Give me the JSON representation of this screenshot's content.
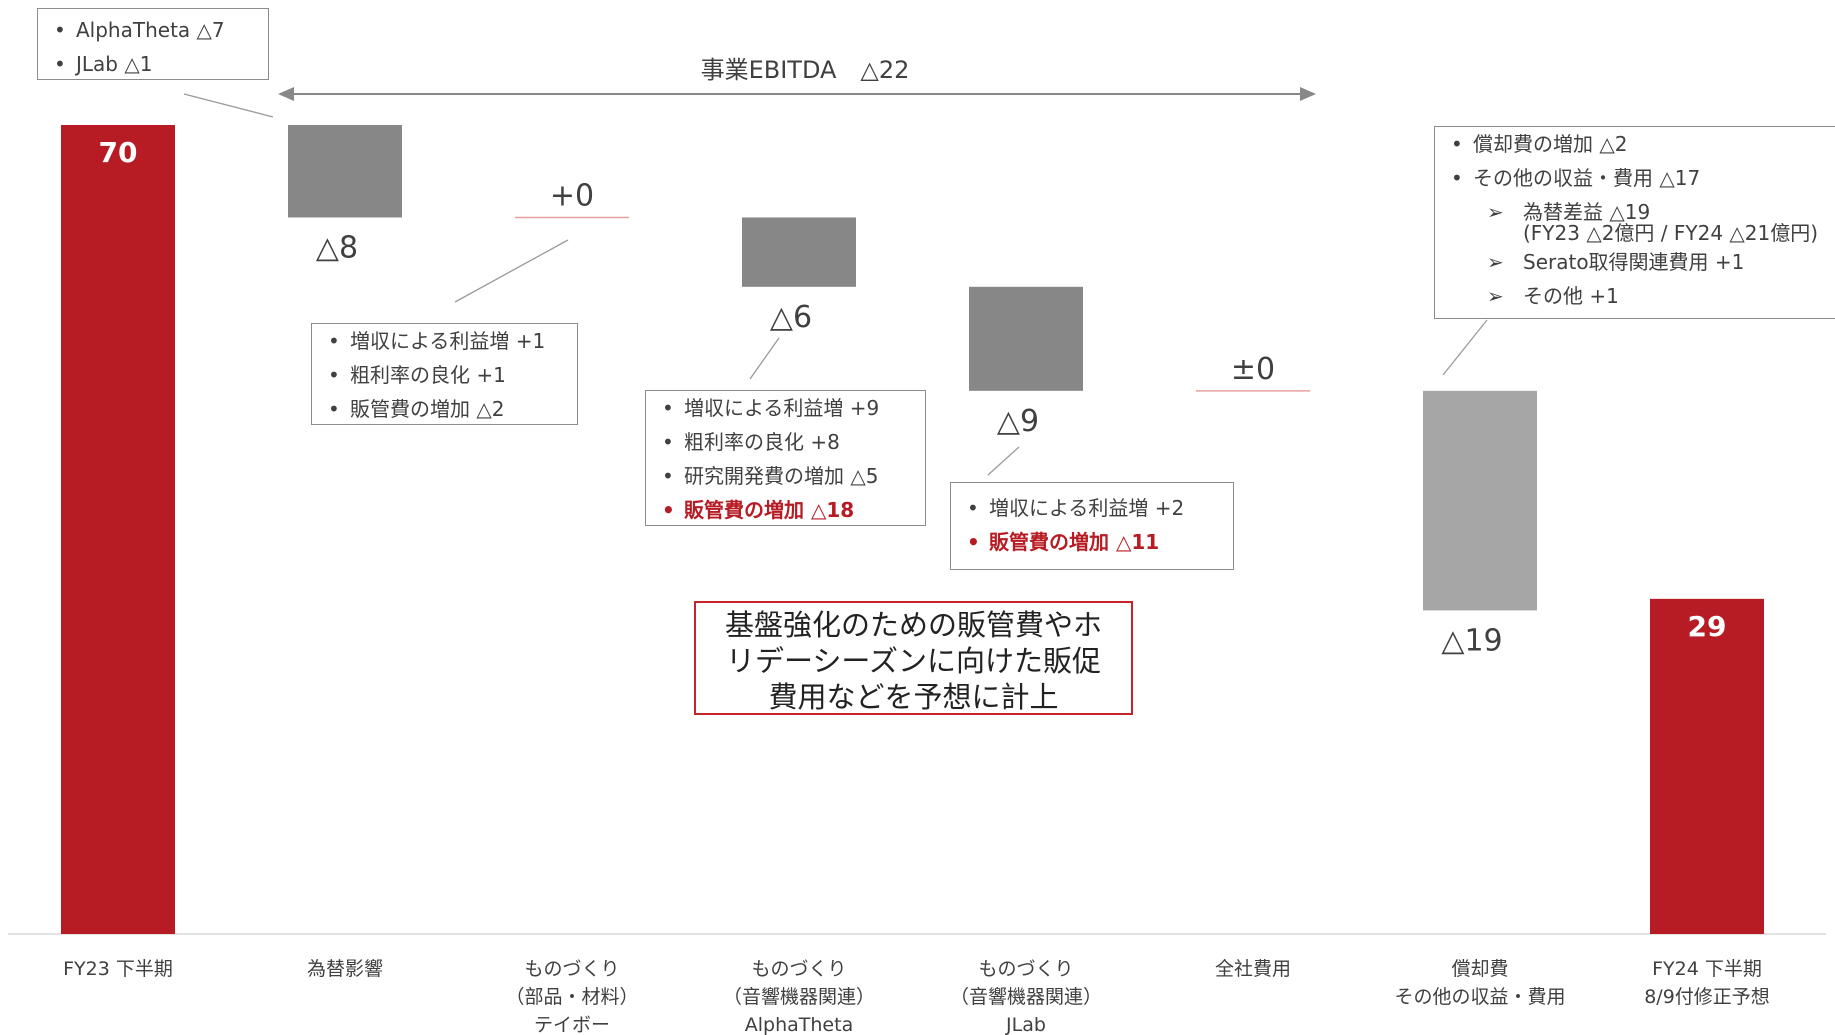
{
  "chart_data": {
    "type": "waterfall",
    "categories": [
      [
        "FY23 下半期"
      ],
      [
        "為替影響"
      ],
      [
        "ものづくり",
        "（部品・材料）",
        "テイボー"
      ],
      [
        "ものづくり",
        "（音響機器関連）",
        "AlphaTheta"
      ],
      [
        "ものづくり",
        "（音響機器関連）",
        "JLab"
      ],
      [
        "全社費用"
      ],
      [
        "償却費",
        "その他の収益・費用"
      ],
      [
        "FY24 下半期",
        "8/9付修正予想"
      ]
    ],
    "values": [
      70,
      -8,
      0,
      -6,
      -9,
      0,
      -19,
      29
    ],
    "kinds": [
      "total",
      "delta",
      "delta",
      "delta",
      "delta",
      "delta",
      "delta",
      "total"
    ],
    "value_labels": [
      "70",
      "△8",
      "+0",
      "△6",
      "△9",
      "±0",
      "△19",
      "29"
    ],
    "ylim": [
      0,
      80
    ],
    "colors": {
      "total": "#b71c24",
      "delta_dark": "#878787",
      "delta_light": "#a6a6a6",
      "zero_line": "#e8a0a0",
      "axis": "#d9d9d9",
      "callout_border": "#c8232c"
    },
    "bracket_label": "事業EBITDA　△22",
    "annotations": {
      "fx": [
        "AlphaTheta △7",
        "JLab △1"
      ],
      "teibo": [
        "増収による利益増 +1",
        "粗利率の良化 +1",
        "販管費の増加 △2"
      ],
      "alphatheta": [
        {
          "text": "増収による利益増 +9",
          "emph": false
        },
        {
          "text": "粗利率の良化 +8",
          "emph": false
        },
        {
          "text": "研究開発費の増加 △5",
          "emph": false
        },
        {
          "text": "販管費の増加 △18",
          "emph": true
        }
      ],
      "jlab": [
        {
          "text": "増収による利益増 +2",
          "emph": false
        },
        {
          "text": "販管費の増加 △11",
          "emph": true
        }
      ],
      "other": {
        "items": [
          "償却費の増加 △2",
          "その他の収益・費用 △17"
        ],
        "subitems": [
          {
            "text": "為替差益 △19",
            "cont": "(FY23 △2億円 / FY24 △21億円)"
          },
          {
            "text": "Serato取得関連費用 +1"
          },
          {
            "text": "その他 +1"
          }
        ]
      }
    },
    "callout": [
      "基盤強化のための販管費やホ",
      "リデーシーズンに向けた販促",
      "費用などを予想に計上"
    ]
  }
}
